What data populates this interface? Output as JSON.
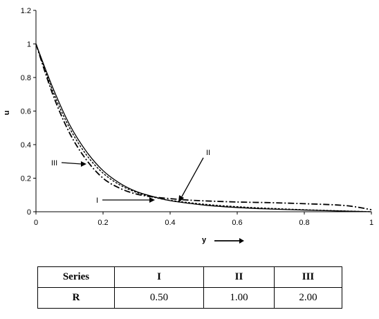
{
  "chart_data": {
    "type": "line",
    "xlabel": "y",
    "ylabel": "u",
    "xlim": [
      0,
      1
    ],
    "ylim": [
      0,
      1.2
    ],
    "x_ticks": [
      "0",
      "0.2",
      "0.4",
      "0.6",
      "0.8",
      "1"
    ],
    "y_ticks": [
      "0",
      "0.2",
      "0.4",
      "0.6",
      "0.8",
      "1",
      "1.2"
    ],
    "grid": false,
    "series": [
      {
        "name": "I",
        "style": "solid",
        "x": [
          0,
          0.05,
          0.1,
          0.15,
          0.2,
          0.25,
          0.3,
          0.35,
          0.4,
          0.5,
          0.6,
          0.7,
          0.8,
          0.9,
          1.0
        ],
        "y": [
          1.0,
          0.74,
          0.52,
          0.36,
          0.245,
          0.17,
          0.12,
          0.09,
          0.066,
          0.04,
          0.025,
          0.016,
          0.01,
          0.005,
          0.0
        ]
      },
      {
        "name": "II",
        "style": "dashed",
        "x": [
          0,
          0.05,
          0.1,
          0.15,
          0.2,
          0.25,
          0.3,
          0.35,
          0.4,
          0.5,
          0.6,
          0.7,
          0.8,
          0.9,
          1.0
        ],
        "y": [
          1.0,
          0.72,
          0.5,
          0.34,
          0.23,
          0.16,
          0.115,
          0.087,
          0.068,
          0.045,
          0.03,
          0.02,
          0.012,
          0.006,
          0.0
        ]
      },
      {
        "name": "III",
        "style": "dash-dot",
        "x": [
          0,
          0.05,
          0.1,
          0.15,
          0.2,
          0.25,
          0.3,
          0.35,
          0.4,
          0.45,
          0.5,
          0.6,
          0.7,
          0.8,
          0.9,
          0.95,
          1.0
        ],
        "y": [
          1.0,
          0.7,
          0.47,
          0.31,
          0.2,
          0.14,
          0.105,
          0.088,
          0.078,
          0.07,
          0.065,
          0.058,
          0.054,
          0.048,
          0.04,
          0.03,
          0.012
        ]
      }
    ],
    "annotations": [
      "I",
      "II",
      "III"
    ]
  },
  "table": {
    "header": [
      "Series",
      "I",
      "II",
      "III"
    ],
    "rows": [
      [
        "R",
        "0.50",
        "1.00",
        "2.00"
      ]
    ]
  }
}
